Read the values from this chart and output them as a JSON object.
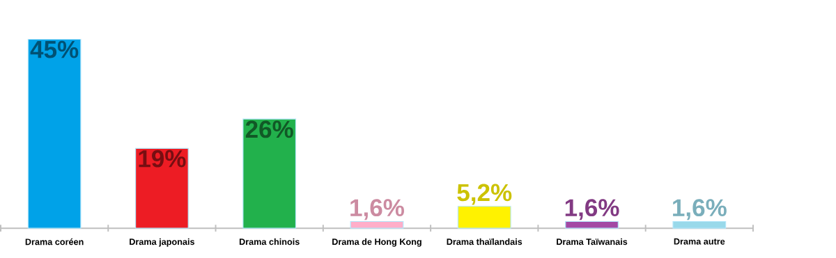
{
  "chart_data": {
    "type": "bar",
    "categories": [
      "Drama coréen",
      "Drama japonais",
      "Drama chinois",
      "Drama de Hong Kong",
      "Drama thaïlandais",
      "Drama Taïwanais",
      "Drama autre"
    ],
    "values": [
      45,
      19,
      26,
      1.6,
      5.2,
      1.6,
      1.6
    ],
    "colors": [
      "#00a2e8",
      "#ed1c24",
      "#22b14c",
      "#ffaec9",
      "#fff200",
      "#a349a4",
      "#99d9ea"
    ],
    "value_labels": [
      "45%",
      "19%",
      "26%",
      "1,6%",
      "5,2%",
      "1,6%",
      "1,6%"
    ]
  }
}
